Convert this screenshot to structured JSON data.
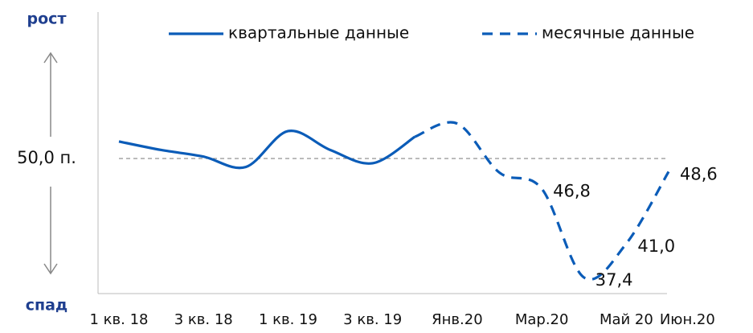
{
  "chart_data": {
    "type": "line",
    "categories": [
      "1 кв. 18",
      null,
      "3 кв. 18",
      null,
      "1 кв. 19",
      null,
      "3 кв. 19",
      null,
      "Янв.20",
      null,
      "Мар.20",
      null,
      "Май 20",
      "Июн.20"
    ],
    "series": [
      {
        "name": "квартальные данные",
        "color": "#0b5cb8",
        "dash": false,
        "values": [
          51.8,
          50.9,
          50.2,
          49.1,
          52.9,
          50.9,
          49.5,
          52.3,
          null,
          null,
          null,
          null,
          null,
          null
        ]
      },
      {
        "name": "месячные данные",
        "color": "#0b5cb8",
        "dash": true,
        "values": [
          null,
          null,
          null,
          null,
          null,
          null,
          null,
          52.3,
          53.7,
          48.5,
          46.8,
          37.4,
          41.0,
          48.6
        ],
        "value_labels": [
          null,
          null,
          null,
          null,
          null,
          null,
          null,
          null,
          null,
          null,
          "46,8",
          "37,4",
          "41,0",
          "48,6"
        ]
      }
    ],
    "reference_line": {
      "value": 50,
      "label": "50,0 п."
    },
    "top_label": "рост",
    "bottom_label": "спад",
    "ylim": [
      35.7,
      65.5
    ],
    "legend": "top"
  }
}
